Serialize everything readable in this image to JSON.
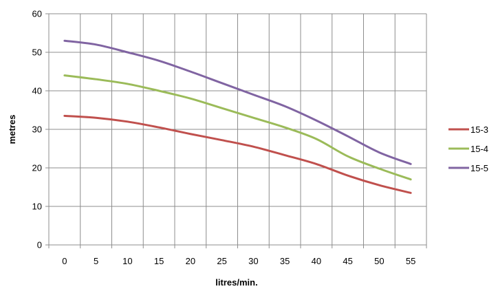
{
  "chart_data": {
    "type": "line",
    "title": "",
    "xlabel": "litres/min.",
    "ylabel": "metres",
    "categories": [
      "0",
      "5",
      "10",
      "15",
      "20",
      "25",
      "30",
      "35",
      "40",
      "45",
      "50",
      "55"
    ],
    "x": [
      0,
      5,
      10,
      15,
      20,
      25,
      30,
      35,
      40,
      45,
      50,
      55
    ],
    "ylim": [
      0,
      60
    ],
    "yticks": [
      0,
      10,
      20,
      30,
      40,
      50,
      60
    ],
    "grid": true,
    "legend_position": "right",
    "series": [
      {
        "name": "15-3",
        "color": "#C0504D",
        "values": [
          33.5,
          33.0,
          32.0,
          30.5,
          28.8,
          27.2,
          25.5,
          23.3,
          21.0,
          18.0,
          15.5,
          13.5
        ]
      },
      {
        "name": "15-4",
        "color": "#9BBB59",
        "values": [
          44.0,
          43.0,
          41.8,
          40.0,
          38.0,
          35.5,
          33.0,
          30.5,
          27.5,
          23.0,
          19.8,
          17.0
        ]
      },
      {
        "name": "15-5",
        "color": "#8064A2",
        "values": [
          53.0,
          52.0,
          50.0,
          47.8,
          45.0,
          42.0,
          39.0,
          36.0,
          32.3,
          28.2,
          24.0,
          21.0
        ]
      }
    ]
  }
}
